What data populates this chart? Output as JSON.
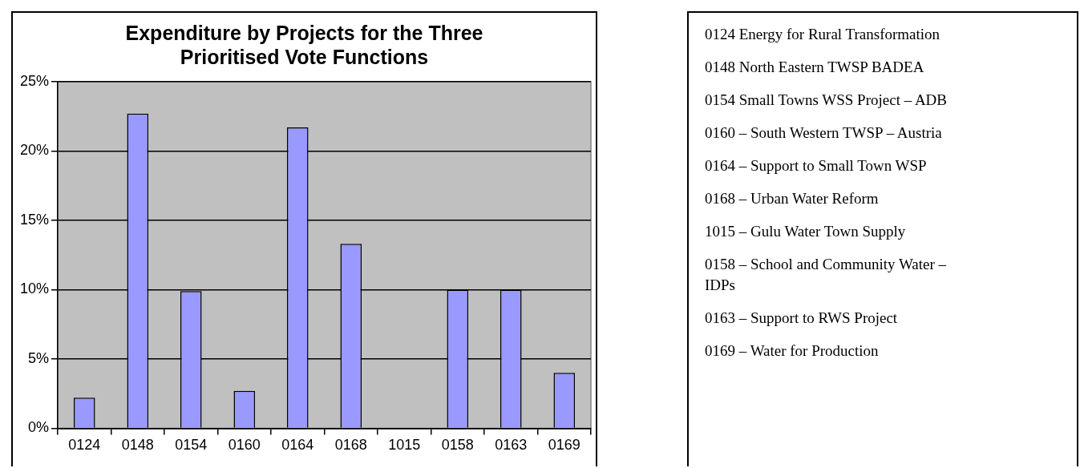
{
  "chart_data": {
    "type": "bar",
    "title": [
      "Expenditure by Projects for the Three",
      "Prioritised Vote Functions"
    ],
    "categories": [
      "0124",
      "0148",
      "0154",
      "0160",
      "0164",
      "0168",
      "1015",
      "0158",
      "0163",
      "0169"
    ],
    "values": [
      2.2,
      22.7,
      9.9,
      2.7,
      21.7,
      13.3,
      0,
      10,
      10,
      4.0
    ],
    "color": "#9999ff",
    "ylim": [
      0,
      25
    ],
    "yticks": [
      {
        "value": 0,
        "label": "0%"
      },
      {
        "value": 5,
        "label": "5%"
      },
      {
        "value": 10,
        "label": "10%"
      },
      {
        "value": 15,
        "label": "15%"
      },
      {
        "value": 20,
        "label": "20%"
      },
      {
        "value": 25,
        "label": "25%"
      }
    ],
    "grid": "y",
    "annotations": [
      "0124 Energy for Rural Transformation",
      "0148 North Eastern TWSP BADEA",
      "0154 Small Towns WSS Project – ADB",
      "0160 – South Western TWSP – Austria",
      "0164 – Support to Small Town WSP",
      "0168 – Urban Water Reform",
      "1015 – Gulu Water Town Supply",
      "0158 – School and Community Water – IDPs",
      "0163 – Support to RWS Project",
      "0169 – Water for Production"
    ]
  }
}
